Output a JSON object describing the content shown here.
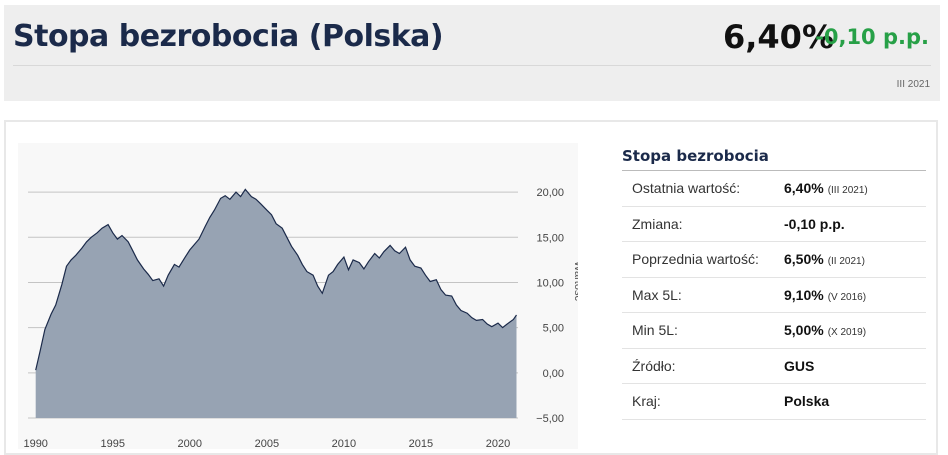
{
  "header": {
    "title_main": "Stopa bezrobocia",
    "title_country": "(Polska)",
    "value": "6,40%",
    "change": "-0,10 p.p.",
    "period": "III 2021",
    "change_color": "#27a047"
  },
  "info": {
    "title": "Stopa bezrobocia",
    "rows": [
      {
        "label": "Ostatnia wartość:",
        "value": "6,40%",
        "sub": "(III 2021)"
      },
      {
        "label": "Zmiana:",
        "value": "-0,10 p.p.",
        "sub": ""
      },
      {
        "label": "Poprzednia wartość:",
        "value": "6,50%",
        "sub": "(II 2021)"
      },
      {
        "label": "Max 5L:",
        "value": "9,10%",
        "sub": "(V 2016)"
      },
      {
        "label": "Min 5L:",
        "value": "5,00%",
        "sub": "(X 2019)"
      },
      {
        "label": "Źródło:",
        "value": "GUS",
        "sub": ""
      },
      {
        "label": "Kraj:",
        "value": "Polska",
        "sub": ""
      }
    ]
  },
  "chart_data": {
    "type": "area",
    "title": "",
    "xlabel": "",
    "ylabel": "Wartość",
    "xlim": [
      1989.5,
      2021.3
    ],
    "ylim": [
      -5,
      22
    ],
    "x_ticks": [
      1990,
      1995,
      2000,
      2005,
      2010,
      2015,
      2020
    ],
    "x_tick_labels": [
      "1990",
      "1995",
      "2000",
      "2005",
      "2010",
      "2015",
      "2020"
    ],
    "y_ticks": [
      -5,
      0,
      5,
      10,
      15,
      20
    ],
    "y_tick_labels": [
      "−5,00",
      "0,00",
      "5,00",
      "10,00",
      "15,00",
      "20,00"
    ],
    "grid": true,
    "fill_color": "#97a3b3",
    "line_color": "#1b2a4a",
    "series": [
      {
        "x": [
          1990.0,
          1990.3,
          1990.6,
          1991.0,
          1991.3,
          1991.7,
          1992.0,
          1992.3,
          1992.6,
          1993.0,
          1993.3,
          1993.6,
          1994.0,
          1994.3,
          1994.7,
          1995.0,
          1995.3,
          1995.6,
          1996.0,
          1996.3,
          1996.6,
          1997.0,
          1997.3,
          1997.6,
          1998.0,
          1998.3,
          1998.6,
          1999.0,
          1999.3,
          1999.7,
          2000.0,
          2000.3,
          2000.6,
          2001.0,
          2001.3,
          2001.6,
          2002.0,
          2002.3,
          2002.6,
          2003.0,
          2003.3,
          2003.6,
          2004.0,
          2004.3,
          2004.6,
          2005.0,
          2005.3,
          2005.6,
          2006.0,
          2006.3,
          2006.6,
          2007.0,
          2007.3,
          2007.6,
          2008.0,
          2008.3,
          2008.6,
          2009.0,
          2009.3,
          2009.6,
          2010.0,
          2010.3,
          2010.6,
          2011.0,
          2011.3,
          2011.6,
          2012.0,
          2012.3,
          2012.6,
          2013.0,
          2013.3,
          2013.6,
          2014.0,
          2014.3,
          2014.6,
          2015.0,
          2015.3,
          2015.6,
          2016.0,
          2016.3,
          2016.6,
          2017.0,
          2017.3,
          2017.6,
          2018.0,
          2018.3,
          2018.6,
          2019.0,
          2019.3,
          2019.6,
          2020.0,
          2020.3,
          2020.6,
          2021.0,
          2021.2
        ],
        "y": [
          0.3,
          2.5,
          4.8,
          6.5,
          7.5,
          9.8,
          11.8,
          12.5,
          13.0,
          13.8,
          14.5,
          15.0,
          15.5,
          16.0,
          16.4,
          15.5,
          14.8,
          15.2,
          14.5,
          13.5,
          12.5,
          11.5,
          10.9,
          10.2,
          10.4,
          9.6,
          10.8,
          12.0,
          11.7,
          12.8,
          13.6,
          14.2,
          14.8,
          16.2,
          17.2,
          18.0,
          19.3,
          19.6,
          19.2,
          20.0,
          19.5,
          20.3,
          19.5,
          19.2,
          18.7,
          18.0,
          17.5,
          16.5,
          16.0,
          15.0,
          14.0,
          13.0,
          12.0,
          11.2,
          10.8,
          9.6,
          8.8,
          10.8,
          11.2,
          12.0,
          12.8,
          11.4,
          12.5,
          12.2,
          11.5,
          12.3,
          13.2,
          12.7,
          13.4,
          14.1,
          13.5,
          13.2,
          13.9,
          12.5,
          11.8,
          11.6,
          10.8,
          10.1,
          10.3,
          9.2,
          8.6,
          8.5,
          7.5,
          6.9,
          6.6,
          6.1,
          5.8,
          5.9,
          5.4,
          5.1,
          5.5,
          5.0,
          5.4,
          5.9,
          6.4
        ]
      }
    ]
  }
}
